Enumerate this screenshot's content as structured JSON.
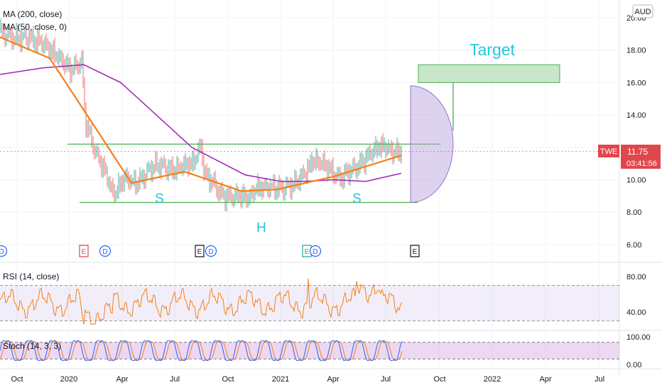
{
  "legend": {
    "ma200": "MA (200, close)",
    "ma50": "MA (50, close, 0)",
    "rsi": "RSI (14, close)",
    "stoch": "Stoch (14, 3, 3)"
  },
  "currency": "AUD",
  "ticker": {
    "symbol": "TWE",
    "price": "11.75",
    "countdown": "03:41:56"
  },
  "annotations": {
    "target": "Target",
    "left_shoulder": "S",
    "head": "H",
    "right_shoulder": "S"
  },
  "colors": {
    "price": "#e0474c",
    "ma50": "#f57f17",
    "ma200": "#9c27b0",
    "rsi": "#f57f17",
    "stoch_k": "#2962ff",
    "stoch_d": "#f57f17",
    "pattern": "#4caf50",
    "target_fill": "#c8e6c9",
    "bowl": "#b39ddb"
  },
  "chart_data": [
    {
      "type": "line",
      "panel": "price",
      "y_axis_ticks": [
        "20.00",
        "18.00",
        "16.00",
        "14.00",
        "12.00",
        "10.00",
        "8.00",
        "6.00"
      ],
      "ylim": [
        5.3,
        20.6
      ],
      "x_axis_ticks": [
        "Oct",
        "2020",
        "Apr",
        "Jul",
        "Oct",
        "2021",
        "Apr",
        "Jul",
        "Oct",
        "2022",
        "Apr",
        "Jul"
      ],
      "series": [
        {
          "name": "MA (200, close)",
          "values": [
            16.5,
            16.9,
            17.1,
            16.0,
            14.0,
            12.0,
            10.3,
            9.9,
            9.9,
            10.0,
            9.9,
            10.4
          ]
        },
        {
          "name": "MA (50, close, 0)",
          "values": [
            18.8,
            17.5,
            13.5,
            9.8,
            10.5,
            9.3,
            9.4,
            10.2,
            11.5
          ]
        }
      ],
      "last_price": 11.75,
      "events": [
        "D",
        "E",
        "D",
        "E",
        "D",
        "E",
        "D",
        "E"
      ],
      "pattern": {
        "neckline": 12.2,
        "base_line": 8.6,
        "target_zone": [
          16.0,
          17.1
        ]
      }
    },
    {
      "type": "line",
      "panel": "rsi",
      "name": "RSI (14, close)",
      "y_axis_ticks": [
        "80.00",
        "40.00"
      ],
      "band": [
        30,
        70
      ]
    },
    {
      "type": "line",
      "panel": "stoch",
      "name": "Stoch (14, 3, 3)",
      "y_axis_ticks": [
        "100.00",
        "0.00"
      ],
      "band": [
        20,
        80
      ]
    }
  ]
}
